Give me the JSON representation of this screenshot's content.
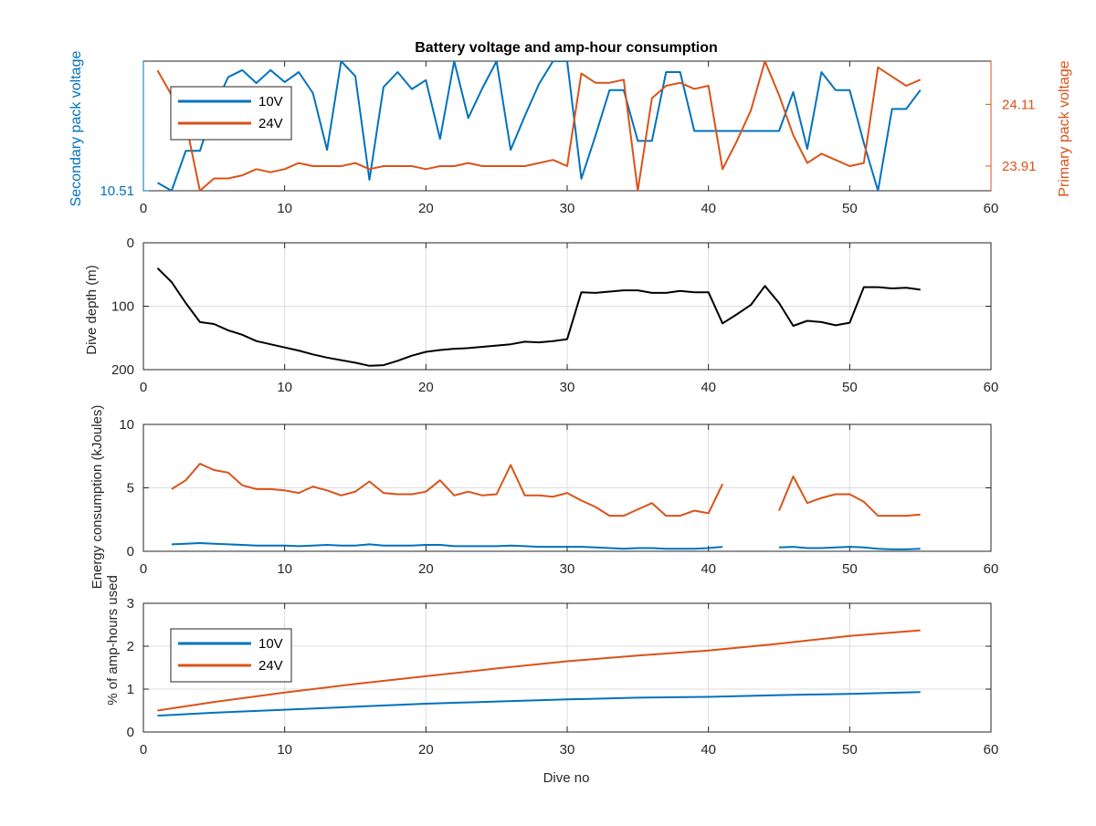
{
  "figure": {
    "title": "Battery voltage and amp-hour consumption",
    "xlabel": "Dive no"
  },
  "colors": {
    "series_10v": "#0072BD",
    "series_24v": "#D95319",
    "depth": "#000000",
    "axis": "#262626",
    "grid": "#dcdcdc"
  },
  "chart_data": [
    {
      "type": "line",
      "title": "Battery voltage and amp-hour consumption",
      "xlabel": "",
      "ylabel_left": "Secondary pack voltage",
      "ylabel_right": "Primary pack voltage",
      "xlim": [
        0,
        60
      ],
      "xticks": [
        0,
        10,
        20,
        30,
        40,
        50,
        60
      ],
      "ylim_left": [
        10.51,
        10.64
      ],
      "yticks_left": [
        10.51
      ],
      "ytick_labels_left": [
        "10.51"
      ],
      "ylim_right": [
        23.83,
        24.25
      ],
      "yticks_right": [
        23.91,
        24.11
      ],
      "ytick_labels_right": [
        "23.91",
        "24.11"
      ],
      "grid": false,
      "legend": [
        "10V",
        "24V"
      ],
      "legend_position": "top-left",
      "series": [
        {
          "name": "10V",
          "axis": "left",
          "x": [
            1,
            2,
            3,
            4,
            5,
            6,
            7,
            8,
            9,
            10,
            11,
            12,
            13,
            14,
            15,
            16,
            17,
            18,
            19,
            20,
            21,
            22,
            23,
            24,
            25,
            26,
            27,
            28,
            29,
            30,
            31,
            32,
            33,
            34,
            35,
            36,
            37,
            38,
            39,
            40,
            41,
            42,
            43,
            44,
            45,
            46,
            47,
            48,
            49,
            50,
            51,
            52,
            53,
            54,
            55
          ],
          "y": [
            10.518,
            10.51,
            10.55,
            10.55,
            10.593,
            10.624,
            10.631,
            10.618,
            10.631,
            10.619,
            10.629,
            10.608,
            10.551,
            10.64,
            10.625,
            10.521,
            10.614,
            10.629,
            10.612,
            10.621,
            10.562,
            10.64,
            10.583,
            10.613,
            10.64,
            10.551,
            10.585,
            10.617,
            10.64,
            10.64,
            10.522,
            10.565,
            10.611,
            10.611,
            10.56,
            10.56,
            10.629,
            10.629,
            10.57,
            10.57,
            10.57,
            10.57,
            10.57,
            10.57,
            10.57,
            10.609,
            10.552,
            10.629,
            10.611,
            10.611,
            10.558,
            10.51,
            10.592,
            10.592,
            10.611
          ]
        },
        {
          "name": "24V",
          "axis": "right",
          "x": [
            1,
            2,
            3,
            4,
            5,
            6,
            7,
            8,
            9,
            10,
            11,
            12,
            13,
            14,
            15,
            16,
            17,
            18,
            19,
            20,
            21,
            22,
            23,
            24,
            25,
            26,
            27,
            28,
            29,
            30,
            31,
            32,
            33,
            34,
            35,
            36,
            37,
            38,
            39,
            40,
            41,
            42,
            43,
            44,
            45,
            46,
            47,
            48,
            49,
            50,
            51,
            52,
            53,
            54,
            55
          ],
          "y": [
            24.22,
            24.14,
            24.05,
            23.83,
            23.87,
            23.87,
            23.88,
            23.9,
            23.89,
            23.9,
            23.92,
            23.91,
            23.91,
            23.91,
            23.92,
            23.9,
            23.91,
            23.91,
            23.91,
            23.9,
            23.91,
            23.91,
            23.92,
            23.91,
            23.91,
            23.91,
            23.91,
            23.92,
            23.93,
            23.91,
            24.21,
            24.18,
            24.18,
            24.19,
            23.83,
            24.13,
            24.17,
            24.18,
            24.16,
            24.17,
            23.9,
            23.99,
            24.09,
            24.25,
            24.14,
            24.01,
            23.92,
            23.95,
            23.93,
            23.91,
            23.92,
            24.23,
            24.2,
            24.17,
            24.19
          ]
        }
      ]
    },
    {
      "type": "line",
      "title": "",
      "xlabel": "",
      "ylabel": "Dive depth (m)",
      "xlim": [
        0,
        60
      ],
      "xticks": [
        0,
        10,
        20,
        30,
        40,
        50,
        60
      ],
      "ylim": [
        0,
        200
      ],
      "y_reversed": true,
      "yticks": [
        0,
        100,
        200
      ],
      "ytick_labels": [
        "0",
        "100",
        "200"
      ],
      "grid": true,
      "series": [
        {
          "name": "",
          "x": [
            1,
            2,
            3,
            4,
            5,
            6,
            7,
            8,
            9,
            10,
            11,
            12,
            13,
            14,
            15,
            16,
            17,
            18,
            19,
            20,
            21,
            22,
            23,
            24,
            25,
            26,
            27,
            28,
            29,
            30,
            31,
            32,
            33,
            34,
            35,
            36,
            37,
            38,
            39,
            40,
            41,
            42,
            43,
            44,
            45,
            46,
            47,
            48,
            49,
            50,
            51,
            52,
            53,
            54,
            55
          ],
          "y": [
            40,
            62,
            95,
            125,
            128,
            138,
            145,
            155,
            160,
            165,
            170,
            176,
            181,
            185,
            189,
            194,
            193,
            186,
            178,
            172,
            169,
            167,
            166,
            164,
            162,
            160,
            156,
            157,
            155,
            152,
            78,
            79,
            77,
            75,
            75,
            79,
            79,
            76,
            78,
            78,
            127,
            113,
            98,
            68,
            95,
            131,
            123,
            125,
            130,
            126,
            70,
            70,
            72,
            71,
            74
          ]
        }
      ]
    },
    {
      "type": "line",
      "title": "",
      "xlabel": "",
      "ylabel": "Energy consumption (kJoules)",
      "xlim": [
        0,
        60
      ],
      "xticks": [
        0,
        10,
        20,
        30,
        40,
        50,
        60
      ],
      "ylim": [
        0,
        10
      ],
      "yticks": [
        0,
        5,
        10
      ],
      "ytick_labels": [
        "0",
        "5",
        "10"
      ],
      "grid": true,
      "series": [
        {
          "name": "10V",
          "segments": [
            {
              "x": [
                2,
                3,
                4,
                5,
                6,
                7,
                8,
                9,
                10,
                11,
                12,
                13,
                14,
                15,
                16,
                17,
                18,
                19,
                20,
                21,
                22,
                23,
                24,
                25,
                26,
                27,
                28,
                29,
                30,
                31,
                32,
                33,
                34,
                35,
                36,
                37,
                38,
                39,
                40,
                41
              ],
              "y": [
                0.55,
                0.6,
                0.65,
                0.6,
                0.55,
                0.5,
                0.45,
                0.45,
                0.45,
                0.4,
                0.45,
                0.5,
                0.45,
                0.45,
                0.55,
                0.45,
                0.45,
                0.45,
                0.5,
                0.5,
                0.4,
                0.4,
                0.4,
                0.4,
                0.45,
                0.4,
                0.35,
                0.35,
                0.35,
                0.35,
                0.3,
                0.25,
                0.2,
                0.25,
                0.25,
                0.2,
                0.2,
                0.2,
                0.25,
                0.35
              ]
            },
            {
              "x": [
                45,
                46,
                47,
                48,
                49,
                50,
                51,
                52,
                53,
                54,
                55
              ],
              "y": [
                0.3,
                0.35,
                0.25,
                0.25,
                0.3,
                0.35,
                0.3,
                0.2,
                0.15,
                0.15,
                0.2
              ]
            }
          ]
        },
        {
          "name": "24V",
          "segments": [
            {
              "x": [
                2,
                3,
                4,
                5,
                6,
                7,
                8,
                9,
                10,
                11,
                12,
                13,
                14,
                15,
                16,
                17,
                18,
                19,
                20,
                21,
                22,
                23,
                24,
                25,
                26,
                27,
                28,
                29,
                30,
                31,
                32,
                33,
                34,
                35,
                36,
                37,
                38,
                39,
                40,
                41
              ],
              "y": [
                4.9,
                5.6,
                6.9,
                6.4,
                6.2,
                5.2,
                4.9,
                4.9,
                4.8,
                4.6,
                5.1,
                4.8,
                4.4,
                4.7,
                5.5,
                4.6,
                4.5,
                4.5,
                4.7,
                5.6,
                4.4,
                4.7,
                4.4,
                4.5,
                6.8,
                4.4,
                4.4,
                4.3,
                4.6,
                4.0,
                3.5,
                2.8,
                2.8,
                3.3,
                3.8,
                2.8,
                2.8,
                3.2,
                3.0,
                5.3
              ]
            },
            {
              "x": [
                45,
                46,
                47,
                48,
                49,
                50,
                51,
                52,
                53,
                54,
                55
              ],
              "y": [
                3.2,
                5.9,
                3.8,
                4.2,
                4.5,
                4.5,
                3.9,
                2.8,
                2.8,
                2.8,
                2.9
              ]
            }
          ]
        }
      ]
    },
    {
      "type": "line",
      "title": "",
      "xlabel": "Dive no",
      "ylabel": "% of amp-hours used",
      "xlim": [
        0,
        60
      ],
      "xticks": [
        0,
        10,
        20,
        30,
        40,
        50,
        60
      ],
      "ylim": [
        0,
        3
      ],
      "yticks": [
        0,
        1,
        2,
        3
      ],
      "ytick_labels": [
        "0",
        "1",
        "2",
        "3"
      ],
      "grid": true,
      "legend": [
        "10V",
        "24V"
      ],
      "legend_position": "top-left",
      "series": [
        {
          "name": "10V",
          "x": [
            1,
            5,
            10,
            15,
            20,
            25,
            30,
            35,
            40,
            45,
            50,
            55
          ],
          "y": [
            0.38,
            0.45,
            0.52,
            0.59,
            0.66,
            0.71,
            0.76,
            0.8,
            0.82,
            0.86,
            0.89,
            0.93
          ]
        },
        {
          "name": "24V",
          "x": [
            1,
            5,
            10,
            15,
            20,
            25,
            30,
            35,
            40,
            45,
            50,
            55
          ],
          "y": [
            0.5,
            0.7,
            0.92,
            1.12,
            1.3,
            1.48,
            1.65,
            1.78,
            1.9,
            2.06,
            2.24,
            2.37
          ]
        }
      ]
    }
  ]
}
